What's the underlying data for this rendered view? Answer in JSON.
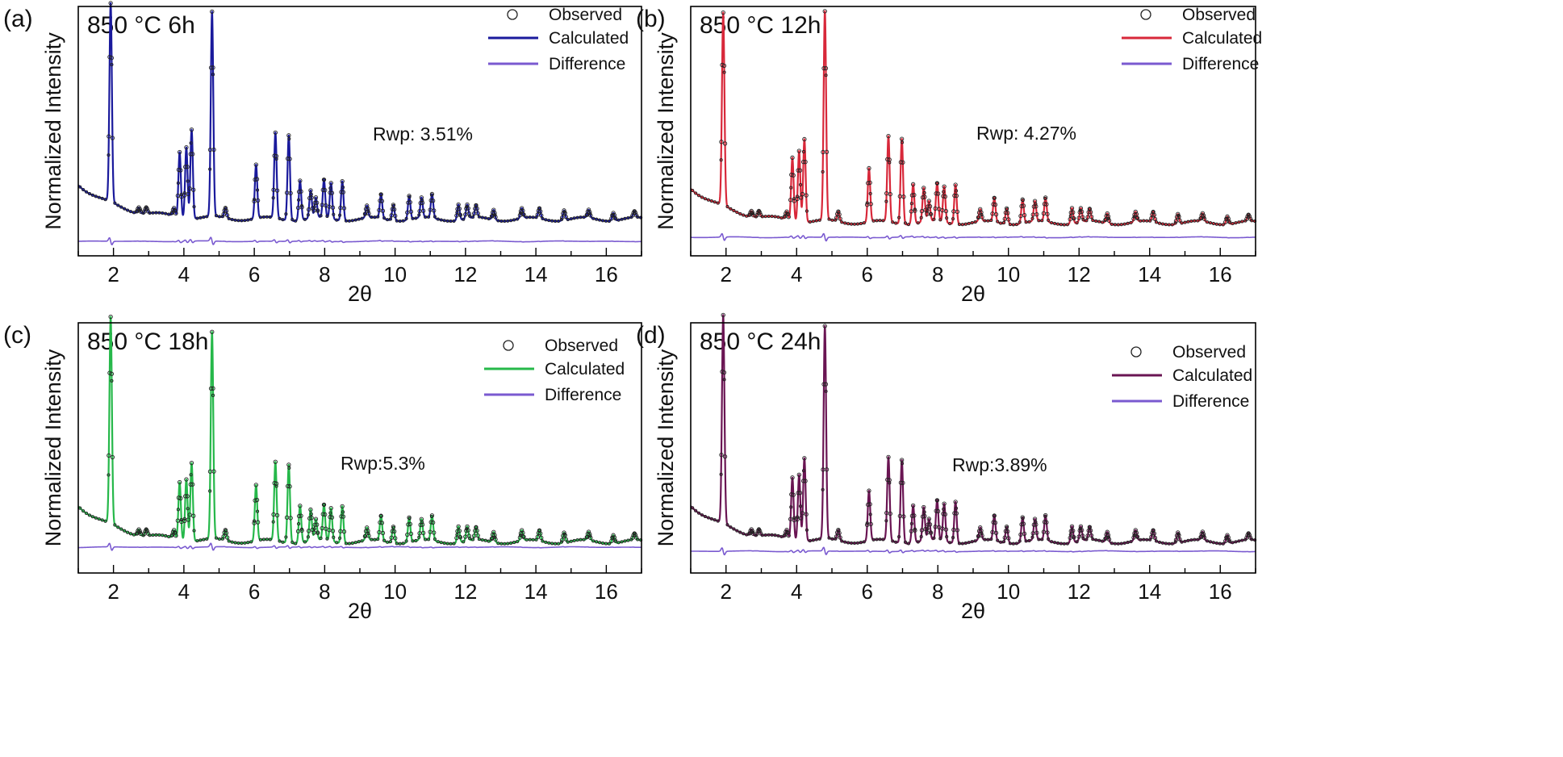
{
  "chart_data": [
    {
      "type": "line",
      "panel": "(a)",
      "title": "850 °C 6h",
      "xlabel": "2θ",
      "ylabel": "Normalized Intensity",
      "xlim": [
        1,
        17
      ],
      "xticks": [
        2,
        4,
        6,
        8,
        10,
        12,
        14,
        16
      ],
      "rwp": "Rwp: 3.51%",
      "calc_color": "#1a1a9c",
      "diff_color": "#7a5ad0",
      "legend_position": "top-right",
      "series": [
        {
          "name": "Observed",
          "style": "open-circle"
        },
        {
          "name": "Calculated",
          "style": "line"
        },
        {
          "name": "Difference",
          "style": "line"
        }
      ],
      "baseline": 0.14,
      "peaks": [
        {
          "x": 1.92,
          "h": 1.0
        },
        {
          "x": 2.72,
          "h": 0.03
        },
        {
          "x": 2.93,
          "h": 0.03
        },
        {
          "x": 3.72,
          "h": 0.04
        },
        {
          "x": 3.88,
          "h": 0.33
        },
        {
          "x": 4.07,
          "h": 0.36
        },
        {
          "x": 4.22,
          "h": 0.45
        },
        {
          "x": 4.8,
          "h": 1.03
        },
        {
          "x": 5.18,
          "h": 0.05
        },
        {
          "x": 6.05,
          "h": 0.27
        },
        {
          "x": 6.6,
          "h": 0.43
        },
        {
          "x": 6.98,
          "h": 0.43
        },
        {
          "x": 7.3,
          "h": 0.2
        },
        {
          "x": 7.6,
          "h": 0.14
        },
        {
          "x": 7.75,
          "h": 0.1
        },
        {
          "x": 7.98,
          "h": 0.19
        },
        {
          "x": 8.18,
          "h": 0.18
        },
        {
          "x": 8.5,
          "h": 0.2
        },
        {
          "x": 9.2,
          "h": 0.06
        },
        {
          "x": 9.6,
          "h": 0.12
        },
        {
          "x": 9.95,
          "h": 0.08
        },
        {
          "x": 10.4,
          "h": 0.12
        },
        {
          "x": 10.75,
          "h": 0.1
        },
        {
          "x": 11.05,
          "h": 0.12
        },
        {
          "x": 11.8,
          "h": 0.08
        },
        {
          "x": 12.05,
          "h": 0.07
        },
        {
          "x": 12.3,
          "h": 0.06
        },
        {
          "x": 12.8,
          "h": 0.05
        },
        {
          "x": 13.6,
          "h": 0.05
        },
        {
          "x": 14.1,
          "h": 0.05
        },
        {
          "x": 14.8,
          "h": 0.05
        },
        {
          "x": 15.5,
          "h": 0.04
        },
        {
          "x": 16.2,
          "h": 0.04
        },
        {
          "x": 16.8,
          "h": 0.03
        }
      ]
    },
    {
      "type": "line",
      "panel": "(b)",
      "title": "850 °C 12h",
      "xlabel": "2θ",
      "ylabel": "Normalized Intensity",
      "xlim": [
        1,
        17
      ],
      "xticks": [
        2,
        4,
        6,
        8,
        10,
        12,
        14,
        16
      ],
      "rwp": "Rwp: 4.27%",
      "calc_color": "#d8283a",
      "diff_color": "#7a5ad0",
      "legend_position": "top-right",
      "series": [
        {
          "name": "Observed",
          "style": "open-circle"
        },
        {
          "name": "Calculated",
          "style": "line"
        },
        {
          "name": "Difference",
          "style": "line"
        }
      ],
      "baseline": 0.1,
      "peaks": [
        {
          "x": 1.92,
          "h": 0.97
        },
        {
          "x": 2.72,
          "h": 0.03
        },
        {
          "x": 2.93,
          "h": 0.03
        },
        {
          "x": 3.72,
          "h": 0.04
        },
        {
          "x": 3.88,
          "h": 0.32
        },
        {
          "x": 4.07,
          "h": 0.36
        },
        {
          "x": 4.22,
          "h": 0.42
        },
        {
          "x": 4.8,
          "h": 1.05
        },
        {
          "x": 5.18,
          "h": 0.05
        },
        {
          "x": 6.05,
          "h": 0.27
        },
        {
          "x": 6.6,
          "h": 0.43
        },
        {
          "x": 6.98,
          "h": 0.43
        },
        {
          "x": 7.3,
          "h": 0.2
        },
        {
          "x": 7.6,
          "h": 0.17
        },
        {
          "x": 7.75,
          "h": 0.1
        },
        {
          "x": 7.98,
          "h": 0.19
        },
        {
          "x": 8.18,
          "h": 0.18
        },
        {
          "x": 8.5,
          "h": 0.2
        },
        {
          "x": 9.2,
          "h": 0.06
        },
        {
          "x": 9.6,
          "h": 0.12
        },
        {
          "x": 9.95,
          "h": 0.08
        },
        {
          "x": 10.4,
          "h": 0.12
        },
        {
          "x": 10.75,
          "h": 0.1
        },
        {
          "x": 11.05,
          "h": 0.12
        },
        {
          "x": 11.8,
          "h": 0.08
        },
        {
          "x": 12.05,
          "h": 0.07
        },
        {
          "x": 12.3,
          "h": 0.06
        },
        {
          "x": 12.8,
          "h": 0.05
        },
        {
          "x": 13.6,
          "h": 0.05
        },
        {
          "x": 14.1,
          "h": 0.05
        },
        {
          "x": 14.8,
          "h": 0.05
        },
        {
          "x": 15.5,
          "h": 0.04
        },
        {
          "x": 16.2,
          "h": 0.04
        },
        {
          "x": 16.8,
          "h": 0.03
        }
      ]
    },
    {
      "type": "line",
      "panel": "(c)",
      "title": "850 °C 18h",
      "xlabel": "2θ",
      "ylabel": "Normalized Intensity",
      "xlim": [
        1,
        17
      ],
      "xticks": [
        2,
        4,
        6,
        8,
        10,
        12,
        14,
        16
      ],
      "rwp": "Rwp:5.3%",
      "calc_color": "#26b84a",
      "diff_color": "#7a5ad0",
      "legend_position": "top-right",
      "series": [
        {
          "name": "Observed",
          "style": "open-circle"
        },
        {
          "name": "Calculated",
          "style": "line"
        },
        {
          "name": "Difference",
          "style": "line"
        }
      ],
      "baseline": 0.08,
      "peaks": [
        {
          "x": 1.92,
          "h": 1.0
        },
        {
          "x": 2.72,
          "h": 0.03
        },
        {
          "x": 2.93,
          "h": 0.03
        },
        {
          "x": 3.72,
          "h": 0.04
        },
        {
          "x": 3.88,
          "h": 0.28
        },
        {
          "x": 4.07,
          "h": 0.3
        },
        {
          "x": 4.22,
          "h": 0.38
        },
        {
          "x": 4.8,
          "h": 1.0
        },
        {
          "x": 5.18,
          "h": 0.05
        },
        {
          "x": 6.05,
          "h": 0.27
        },
        {
          "x": 6.6,
          "h": 0.38
        },
        {
          "x": 6.98,
          "h": 0.38
        },
        {
          "x": 7.3,
          "h": 0.18
        },
        {
          "x": 7.6,
          "h": 0.15
        },
        {
          "x": 7.75,
          "h": 0.1
        },
        {
          "x": 7.98,
          "h": 0.17
        },
        {
          "x": 8.18,
          "h": 0.16
        },
        {
          "x": 8.5,
          "h": 0.18
        },
        {
          "x": 9.2,
          "h": 0.06
        },
        {
          "x": 9.6,
          "h": 0.12
        },
        {
          "x": 9.95,
          "h": 0.08
        },
        {
          "x": 10.4,
          "h": 0.12
        },
        {
          "x": 10.75,
          "h": 0.1
        },
        {
          "x": 11.05,
          "h": 0.12
        },
        {
          "x": 11.8,
          "h": 0.08
        },
        {
          "x": 12.05,
          "h": 0.07
        },
        {
          "x": 12.3,
          "h": 0.06
        },
        {
          "x": 12.8,
          "h": 0.05
        },
        {
          "x": 13.6,
          "h": 0.05
        },
        {
          "x": 14.1,
          "h": 0.05
        },
        {
          "x": 14.8,
          "h": 0.05
        },
        {
          "x": 15.5,
          "h": 0.04
        },
        {
          "x": 16.2,
          "h": 0.04
        },
        {
          "x": 16.8,
          "h": 0.03
        }
      ]
    },
    {
      "type": "line",
      "panel": "(d)",
      "title": "850 °C 24h",
      "xlabel": "2θ",
      "ylabel": "Normalized Intensity",
      "xlim": [
        1,
        17
      ],
      "xticks": [
        2,
        4,
        6,
        8,
        10,
        12,
        14,
        16
      ],
      "rwp": "Rwp:3.89%",
      "calc_color": "#6a1553",
      "diff_color": "#7a5ad0",
      "legend_position": "top-right",
      "series": [
        {
          "name": "Observed",
          "style": "open-circle"
        },
        {
          "name": "Calculated",
          "style": "line"
        },
        {
          "name": "Difference",
          "style": "line"
        }
      ],
      "baseline": 0.08,
      "peaks": [
        {
          "x": 1.92,
          "h": 1.0
        },
        {
          "x": 2.72,
          "h": 0.03
        },
        {
          "x": 2.93,
          "h": 0.03
        },
        {
          "x": 3.72,
          "h": 0.04
        },
        {
          "x": 3.88,
          "h": 0.3
        },
        {
          "x": 4.07,
          "h": 0.32
        },
        {
          "x": 4.22,
          "h": 0.4
        },
        {
          "x": 4.8,
          "h": 1.02
        },
        {
          "x": 5.18,
          "h": 0.05
        },
        {
          "x": 6.05,
          "h": 0.24
        },
        {
          "x": 6.6,
          "h": 0.4
        },
        {
          "x": 6.98,
          "h": 0.4
        },
        {
          "x": 7.3,
          "h": 0.18
        },
        {
          "x": 7.6,
          "h": 0.16
        },
        {
          "x": 7.75,
          "h": 0.1
        },
        {
          "x": 7.98,
          "h": 0.19
        },
        {
          "x": 8.18,
          "h": 0.18
        },
        {
          "x": 8.5,
          "h": 0.2
        },
        {
          "x": 9.2,
          "h": 0.06
        },
        {
          "x": 9.6,
          "h": 0.12
        },
        {
          "x": 9.95,
          "h": 0.08
        },
        {
          "x": 10.4,
          "h": 0.12
        },
        {
          "x": 10.75,
          "h": 0.1
        },
        {
          "x": 11.05,
          "h": 0.12
        },
        {
          "x": 11.8,
          "h": 0.08
        },
        {
          "x": 12.05,
          "h": 0.07
        },
        {
          "x": 12.3,
          "h": 0.06
        },
        {
          "x": 12.8,
          "h": 0.05
        },
        {
          "x": 13.6,
          "h": 0.05
        },
        {
          "x": 14.1,
          "h": 0.05
        },
        {
          "x": 14.8,
          "h": 0.05
        },
        {
          "x": 15.5,
          "h": 0.04
        },
        {
          "x": 16.2,
          "h": 0.04
        },
        {
          "x": 16.8,
          "h": 0.03
        }
      ]
    }
  ]
}
